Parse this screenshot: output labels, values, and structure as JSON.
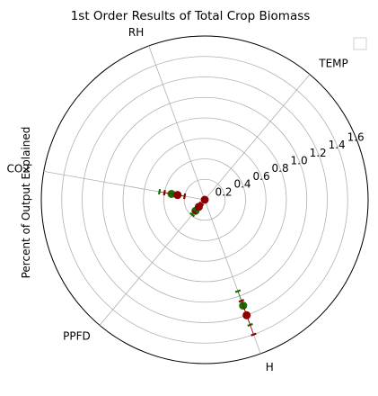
{
  "chart_data": {
    "type": "radar-polar-scatter",
    "title": "1st Order Results of Total Crop Biomass",
    "ylabel": "Percent of Output Explained",
    "r_range": [
      0,
      1.6
    ],
    "r_ticks": [
      {
        "value": 0.2,
        "label": "0.2"
      },
      {
        "value": 0.4,
        "label": "0.4"
      },
      {
        "value": 0.6,
        "label": "0.6"
      },
      {
        "value": 0.8,
        "label": "0.8"
      },
      {
        "value": 1.0,
        "label": "1.0"
      },
      {
        "value": 1.2,
        "label": "1.2"
      },
      {
        "value": 1.4,
        "label": "1.4"
      },
      {
        "value": 1.6,
        "label": "1.6"
      }
    ],
    "axes": [
      {
        "label": "TEMP",
        "angle_deg": 50
      },
      {
        "label": "RH",
        "angle_deg": 110
      },
      {
        "label": "CO2",
        "angle_deg": 170
      },
      {
        "label": "PPFD",
        "angle_deg": 230
      },
      {
        "label": "H",
        "angle_deg": 290
      }
    ],
    "grid": true,
    "legend": "top-right (empty)",
    "series": [
      {
        "color": "#1a6e00",
        "points": [
          {
            "angle_deg": 170,
            "r": 0.33,
            "err": [
              0.25,
              0.45
            ]
          },
          {
            "angle_deg": 230,
            "r": 0.14,
            "err": [
              0.1,
              0.19
            ]
          },
          {
            "angle_deg": 290,
            "r": 1.1,
            "err": [
              0.95,
              1.3
            ]
          }
        ]
      },
      {
        "color": "#8b0000",
        "points": [
          {
            "angle_deg": 0,
            "r": 0.0,
            "err": [
              0.0,
              0.0
            ]
          },
          {
            "angle_deg": 170,
            "r": 0.27,
            "err": [
              0.2,
              0.4
            ]
          },
          {
            "angle_deg": 230,
            "r": 0.09,
            "err": [
              0.05,
              0.16
            ]
          },
          {
            "angle_deg": 290,
            "r": 1.2,
            "err": [
              1.05,
              1.4
            ]
          }
        ]
      }
    ]
  }
}
